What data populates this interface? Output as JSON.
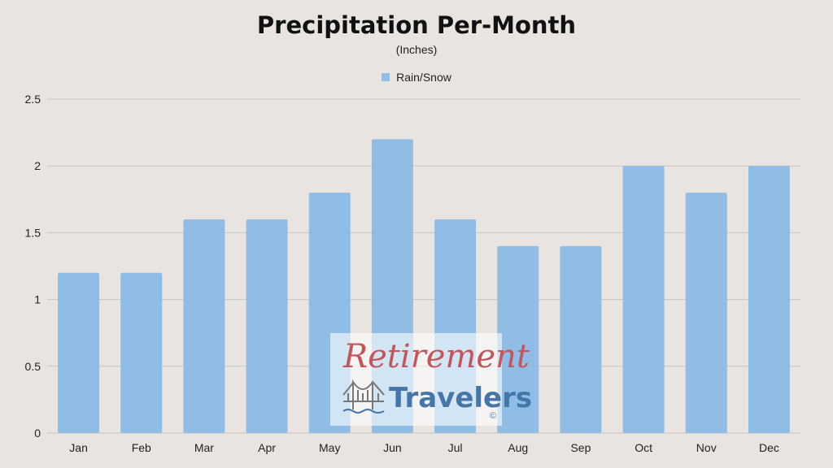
{
  "chart_data": {
    "type": "bar",
    "title": "Precipitation Per-Month",
    "subtitle": "(Inches)",
    "categories": [
      "Jan",
      "Feb",
      "Mar",
      "Apr",
      "May",
      "Jun",
      "Jul",
      "Aug",
      "Sep",
      "Oct",
      "Nov",
      "Dec"
    ],
    "series": [
      {
        "name": "Rain/Snow",
        "values": [
          1.2,
          1.2,
          1.6,
          1.6,
          1.8,
          2.2,
          1.6,
          1.4,
          1.4,
          2.0,
          1.8,
          2.0
        ]
      }
    ],
    "ylim": [
      0,
      2.5
    ],
    "yticks": [
      "0",
      "0.5",
      "1",
      "1.5",
      "2",
      "2.5"
    ],
    "ytick_values": [
      0,
      0.5,
      1,
      1.5,
      2,
      2.5
    ],
    "xlabel": "",
    "ylabel": "",
    "grid": true,
    "legend_position": "top-center",
    "colors": {
      "bar": "#8fbde6",
      "background": "#e9e4df",
      "grid": "#c8c4c0"
    }
  },
  "watermark": {
    "line1": "Retirement",
    "line2": "Travelers",
    "copyright": "©",
    "colors": {
      "line1": "#c4555a",
      "line2": "#4476a8"
    }
  }
}
